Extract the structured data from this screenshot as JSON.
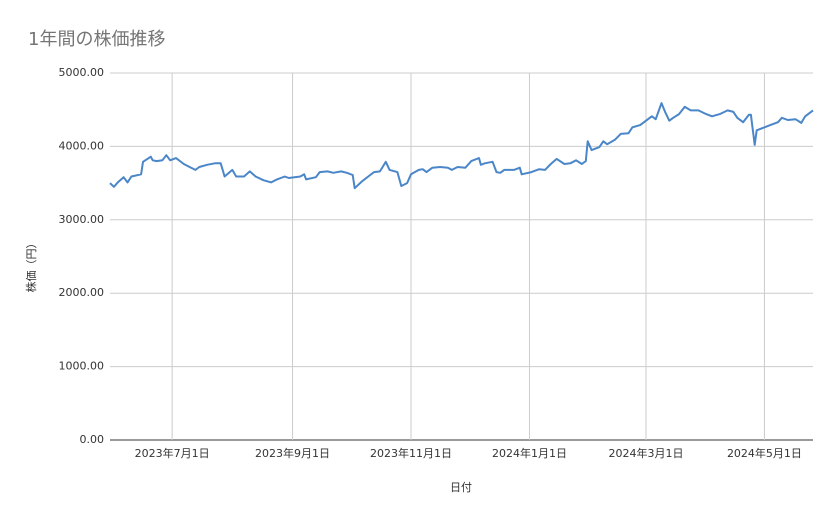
{
  "chart_data": {
    "type": "line",
    "title": "1年間の株価推移",
    "x_label": "日付",
    "y_label": "株価（円）",
    "color": "#4a86c8",
    "grid": true,
    "xlim": [
      "2023-05-30",
      "2024-05-26"
    ],
    "xticks": [
      {
        "value": "2023-07-01",
        "label": "2023年7月1日"
      },
      {
        "value": "2023-09-01",
        "label": "2023年9月1日"
      },
      {
        "value": "2023-11-01",
        "label": "2023年11月1日"
      },
      {
        "value": "2024-01-01",
        "label": "2024年1月1日"
      },
      {
        "value": "2024-03-01",
        "label": "2024年3月1日"
      },
      {
        "value": "2024-05-01",
        "label": "2024年5月1日"
      }
    ],
    "ylim": [
      0,
      5000
    ],
    "yticks": [
      {
        "value": 0,
        "label": "0.00"
      },
      {
        "value": 1000,
        "label": "1000.00"
      },
      {
        "value": 2000,
        "label": "2000.00"
      },
      {
        "value": 3000,
        "label": "3000.00"
      },
      {
        "value": 4000,
        "label": "4000.00"
      },
      {
        "value": 5000,
        "label": "5000.00"
      }
    ],
    "x": [
      "2023-05-30",
      "2023-06-01",
      "2023-06-03",
      "2023-06-06",
      "2023-06-08",
      "2023-06-10",
      "2023-06-15",
      "2023-06-16",
      "2023-06-20",
      "2023-06-21",
      "2023-06-23",
      "2023-06-26",
      "2023-06-28",
      "2023-06-30",
      "2023-07-03",
      "2023-07-07",
      "2023-07-10",
      "2023-07-13",
      "2023-07-15",
      "2023-07-19",
      "2023-07-23",
      "2023-07-26",
      "2023-07-28",
      "2023-08-01",
      "2023-08-03",
      "2023-08-07",
      "2023-08-10",
      "2023-08-13",
      "2023-08-17",
      "2023-08-21",
      "2023-08-24",
      "2023-08-28",
      "2023-08-30",
      "2023-09-05",
      "2023-09-07",
      "2023-09-08",
      "2023-09-13",
      "2023-09-15",
      "2023-09-19",
      "2023-09-22",
      "2023-09-26",
      "2023-09-29",
      "2023-10-02",
      "2023-10-03",
      "2023-10-07",
      "2023-10-11",
      "2023-10-13",
      "2023-10-16",
      "2023-10-19",
      "2023-10-21",
      "2023-10-25",
      "2023-10-27",
      "2023-10-30",
      "2023-11-01",
      "2023-11-05",
      "2023-11-07",
      "2023-11-09",
      "2023-11-12",
      "2023-11-16",
      "2023-11-20",
      "2023-11-22",
      "2023-11-25",
      "2023-11-29",
      "2023-12-02",
      "2023-12-06",
      "2023-12-07",
      "2023-12-09",
      "2023-12-13",
      "2023-12-15",
      "2023-12-17",
      "2023-12-19",
      "2023-12-24",
      "2023-12-27",
      "2023-12-28",
      "2024-01-02",
      "2024-01-06",
      "2024-01-09",
      "2024-01-12",
      "2024-01-15",
      "2024-01-19",
      "2024-01-22",
      "2024-01-25",
      "2024-01-28",
      "2024-01-30",
      "2024-01-31",
      "2024-02-02",
      "2024-02-06",
      "2024-02-08",
      "2024-02-10",
      "2024-02-14",
      "2024-02-17",
      "2024-02-21",
      "2024-02-23",
      "2024-02-27",
      "2024-03-01",
      "2024-03-04",
      "2024-03-06",
      "2024-03-09",
      "2024-03-11",
      "2024-03-13",
      "2024-03-15",
      "2024-03-18",
      "2024-03-21",
      "2024-03-24",
      "2024-03-28",
      "2024-04-01",
      "2024-04-04",
      "2024-04-08",
      "2024-04-12",
      "2024-04-15",
      "2024-04-17",
      "2024-04-20",
      "2024-04-23",
      "2024-04-24",
      "2024-04-26",
      "2024-04-27",
      "2024-05-01",
      "2024-05-04",
      "2024-05-08",
      "2024-05-10",
      "2024-05-13",
      "2024-05-17",
      "2024-05-20",
      "2024-05-22",
      "2024-05-26"
    ],
    "values": [
      3500,
      3450,
      3510,
      3580,
      3510,
      3590,
      3620,
      3790,
      3860,
      3810,
      3800,
      3810,
      3880,
      3810,
      3840,
      3760,
      3720,
      3680,
      3720,
      3750,
      3770,
      3770,
      3590,
      3680,
      3590,
      3590,
      3660,
      3590,
      3540,
      3510,
      3550,
      3590,
      3570,
      3590,
      3620,
      3550,
      3580,
      3650,
      3660,
      3640,
      3660,
      3640,
      3610,
      3430,
      3530,
      3610,
      3650,
      3660,
      3790,
      3680,
      3650,
      3460,
      3500,
      3620,
      3680,
      3690,
      3650,
      3710,
      3720,
      3710,
      3680,
      3720,
      3710,
      3800,
      3840,
      3750,
      3770,
      3790,
      3650,
      3640,
      3680,
      3680,
      3710,
      3620,
      3650,
      3690,
      3680,
      3760,
      3830,
      3760,
      3770,
      3810,
      3760,
      3800,
      4070,
      3950,
      3990,
      4070,
      4030,
      4090,
      4170,
      4180,
      4260,
      4290,
      4350,
      4410,
      4370,
      4590,
      4460,
      4350,
      4390,
      4440,
      4540,
      4490,
      4490,
      4440,
      4410,
      4440,
      4490,
      4470,
      4390,
      4330,
      4430,
      4430,
      4020,
      4220,
      4260,
      4290,
      4330,
      4390,
      4360,
      4370,
      4320,
      4410,
      4490
    ]
  }
}
